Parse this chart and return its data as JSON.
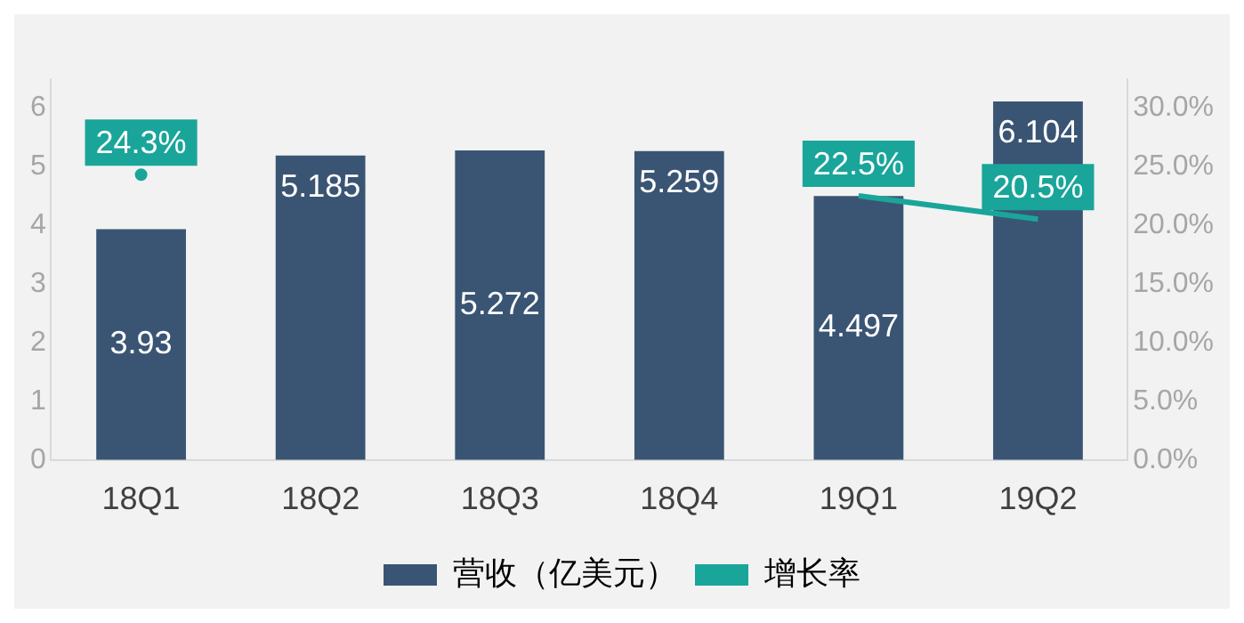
{
  "chart_data": {
    "type": "bar",
    "categories": [
      "18Q1",
      "18Q2",
      "18Q3",
      "18Q4",
      "19Q1",
      "19Q2"
    ],
    "series": [
      {
        "name": "营收（亿美元）",
        "color": "#3a5573",
        "values": [
          3.93,
          5.185,
          5.272,
          5.259,
          4.497,
          6.104
        ],
        "value_labels": [
          "3.93",
          "5.185",
          "5.272",
          "5.259",
          "4.497",
          "6.104"
        ]
      },
      {
        "name": "增长率",
        "type": "line",
        "axis": "y2",
        "color": "#1aa59a",
        "values": [
          24.3,
          null,
          null,
          null,
          22.5,
          20.5
        ],
        "value_labels": [
          "24.3%",
          null,
          null,
          null,
          "22.5%",
          "20.5%"
        ]
      }
    ],
    "ylim": [
      0,
      6.5
    ],
    "yticks": [
      0,
      1,
      2,
      3,
      4,
      5,
      6
    ],
    "y2lim": [
      0,
      32.5
    ],
    "y2ticks": [
      {
        "value": 0,
        "label": "0.0%"
      },
      {
        "value": 5,
        "label": "5.0%"
      },
      {
        "value": 10,
        "label": "10.0%"
      },
      {
        "value": 15,
        "label": "15.0%"
      },
      {
        "value": 20,
        "label": "20.0%"
      },
      {
        "value": 25,
        "label": "25.0%"
      },
      {
        "value": 30,
        "label": "30.0%"
      }
    ],
    "grid": false,
    "legend": "bottom",
    "marker": "none"
  }
}
